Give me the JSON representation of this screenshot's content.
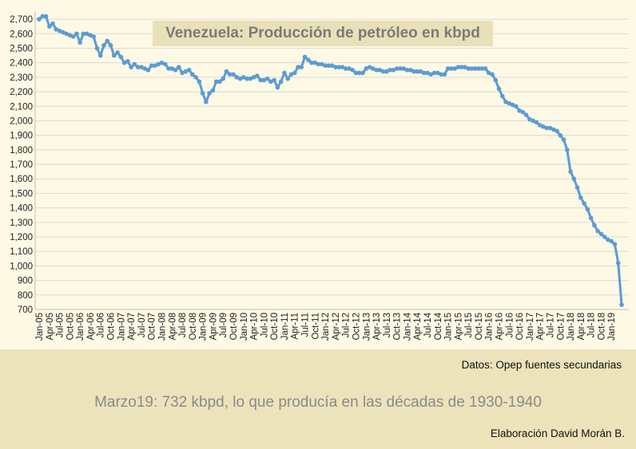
{
  "chart_data": {
    "type": "line",
    "title": "Venezuela: Producción de petróleo en kbpd",
    "xlabel": "",
    "ylabel": "",
    "ylim": [
      700,
      2750
    ],
    "yticks": [
      700,
      800,
      900,
      1000,
      1100,
      1200,
      1300,
      1400,
      1500,
      1600,
      1700,
      1800,
      1900,
      2000,
      2100,
      2200,
      2300,
      2400,
      2500,
      2600,
      2700
    ],
    "ytick_labels": [
      "700",
      "800",
      "900",
      "1,000",
      "1,100",
      "1,200",
      "1,300",
      "1,400",
      "1,500",
      "1,600",
      "1,700",
      "1,800",
      "1,900",
      "2,000",
      "2,100",
      "2,200",
      "2,300",
      "2,400",
      "2,500",
      "2,600",
      "2,700"
    ],
    "grid": true,
    "legend": "none",
    "xtick_labels": [
      "Jan-05",
      "Apr-05",
      "Jul-05",
      "Oct-05",
      "Jan-06",
      "Apr-06",
      "Jul-06",
      "Oct-06",
      "Jan-07",
      "Apr-07",
      "Jul-07",
      "Oct-07",
      "Jan-08",
      "Apr-08",
      "Jul-08",
      "Oct-08",
      "Jan-09",
      "Apr-09",
      "Jul-09",
      "Oct-09",
      "Jan-10",
      "Apr-10",
      "Jul-10",
      "Oct-10",
      "Jan-11",
      "Apr-11",
      "Jul-11",
      "Oct-11",
      "Jan-12",
      "Apr-12",
      "Jul-12",
      "Oct-12",
      "Jan-13",
      "Apr-13",
      "Jul-13",
      "Oct-13",
      "Jan-14",
      "Apr-14",
      "Jul-14",
      "Oct-14",
      "Jan-15",
      "Apr-15",
      "Jul-15",
      "Oct-15",
      "Jan-16",
      "Apr-16",
      "Jul-16",
      "Oct-16",
      "Jan-17",
      "Apr-17",
      "Jul-17",
      "Oct-17",
      "Jan-18",
      "Apr-18",
      "Jul-18",
      "Oct-18",
      "Jan-19"
    ],
    "series": [
      {
        "color": "#5b9bd5",
        "values": [
          2700,
          2720,
          2720,
          2650,
          2670,
          2630,
          2620,
          2610,
          2600,
          2590,
          2580,
          2600,
          2540,
          2600,
          2600,
          2590,
          2580,
          2500,
          2450,
          2520,
          2550,
          2520,
          2450,
          2470,
          2440,
          2400,
          2410,
          2370,
          2390,
          2370,
          2370,
          2360,
          2350,
          2380,
          2380,
          2390,
          2400,
          2390,
          2360,
          2360,
          2350,
          2370,
          2330,
          2340,
          2350,
          2320,
          2300,
          2270,
          2190,
          2130,
          2190,
          2210,
          2270,
          2270,
          2290,
          2340,
          2320,
          2320,
          2300,
          2290,
          2300,
          2290,
          2290,
          2300,
          2310,
          2280,
          2280,
          2290,
          2270,
          2280,
          2230,
          2270,
          2330,
          2290,
          2320,
          2330,
          2370,
          2370,
          2440,
          2420,
          2400,
          2400,
          2390,
          2390,
          2380,
          2380,
          2380,
          2370,
          2370,
          2370,
          2360,
          2360,
          2350,
          2330,
          2330,
          2330,
          2360,
          2370,
          2360,
          2350,
          2350,
          2340,
          2340,
          2350,
          2350,
          2360,
          2360,
          2360,
          2350,
          2350,
          2340,
          2340,
          2340,
          2330,
          2330,
          2320,
          2330,
          2330,
          2320,
          2320,
          2360,
          2360,
          2360,
          2370,
          2370,
          2370,
          2360,
          2360,
          2360,
          2360,
          2360,
          2360,
          2330,
          2320,
          2280,
          2220,
          2170,
          2130,
          2120,
          2110,
          2100,
          2070,
          2060,
          2040,
          2010,
          2000,
          1990,
          1970,
          1960,
          1950,
          1950,
          1940,
          1930,
          1900,
          1870,
          1800,
          1650,
          1600,
          1540,
          1470,
          1430,
          1390,
          1330,
          1280,
          1240,
          1220,
          1200,
          1180,
          1170,
          1150,
          1020,
          732
        ]
      }
    ]
  },
  "notes": {
    "source": "Datos: Opep fuentes secundarias",
    "headline": "Marzo19: 732 kbpd, lo que producía en las décadas de 1930-1940",
    "credit": "Elaboración David Morán B."
  }
}
